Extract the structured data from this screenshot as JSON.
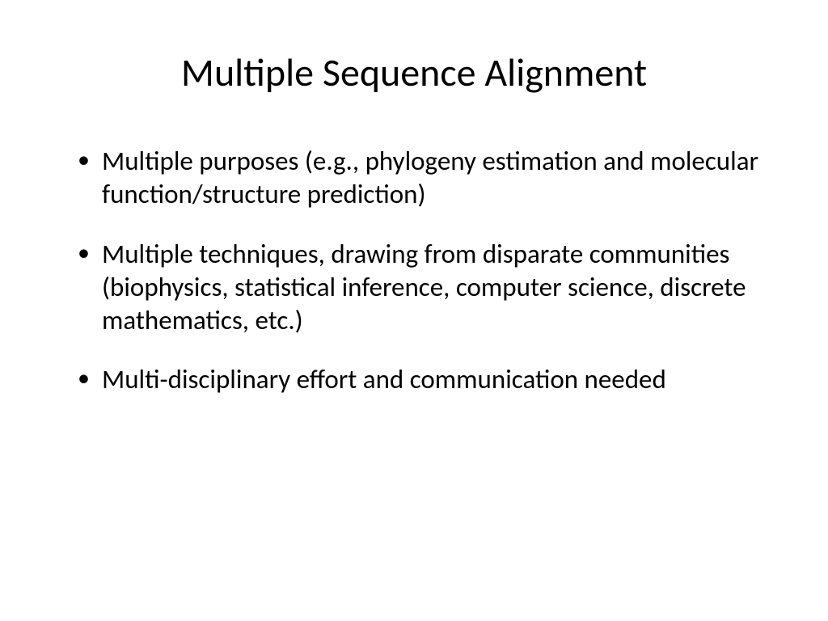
{
  "slide": {
    "title": "Multiple Sequence Alignment",
    "bullets": [
      "Multiple purposes (e.g., phylogeny estimation and molecular function/structure prediction)",
      "Multiple techniques, drawing from disparate communities (biophysics, statistical inference, computer science, discrete mathematics, etc.)",
      "Multi-disciplinary effort and communication needed"
    ]
  },
  "style": {
    "background_color": "#ffffff",
    "text_color": "#000000",
    "title_fontsize": 48,
    "body_fontsize": 33,
    "font_family": "Calibri"
  }
}
